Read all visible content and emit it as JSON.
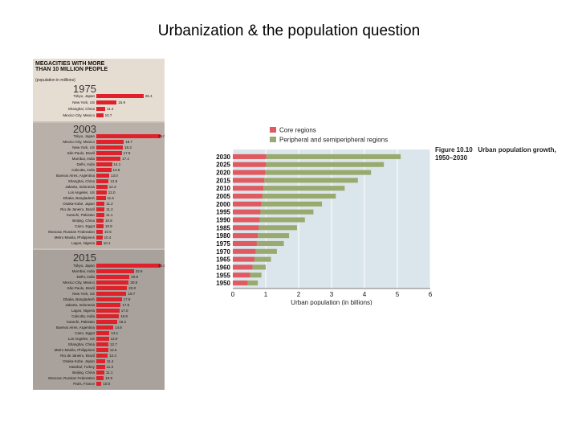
{
  "slide": {
    "title": "Urbanization & the population question"
  },
  "megacities": {
    "header": "MEGACITIES WITH MORE THAN 10 MILLION PEOPLE",
    "subheader": "(population in millions)",
    "years": [
      {
        "year": "1975",
        "cities": [
          {
            "name": "Tokyo, Japan",
            "value": 26.4
          },
          {
            "name": "New York, US",
            "value": 15.9
          },
          {
            "name": "Shanghai, China",
            "value": 11.4
          },
          {
            "name": "Mexico City, Mexico",
            "value": 10.7
          }
        ]
      },
      {
        "year": "2003",
        "cities": [
          {
            "name": "Tokyo, Japan",
            "value": 35.0
          },
          {
            "name": "Mexico City, Mexico",
            "value": 18.7
          },
          {
            "name": "New York, US",
            "value": 18.3
          },
          {
            "name": "São Paulo, Brazil",
            "value": 17.9
          },
          {
            "name": "Mumbai, India",
            "value": 17.4
          },
          {
            "name": "Delhi, India",
            "value": 14.1
          },
          {
            "name": "Calcutta, India",
            "value": 13.8
          },
          {
            "name": "Buenos Aires, Argentina",
            "value": 13.0
          },
          {
            "name": "Shanghai, China",
            "value": 12.8
          },
          {
            "name": "Jakarta, Indonesia",
            "value": 12.3
          },
          {
            "name": "Los Angeles, US",
            "value": 12.0
          },
          {
            "name": "Dhaka, Bangladesh",
            "value": 11.6
          },
          {
            "name": "Osaka-Kobe, Japan",
            "value": 11.2
          },
          {
            "name": "Rio de Janeiro, Brazil",
            "value": 11.2
          },
          {
            "name": "Karachi, Pakistan",
            "value": 11.1
          },
          {
            "name": "Beijing, China",
            "value": 10.8
          },
          {
            "name": "Cairo, Egypt",
            "value": 10.8
          },
          {
            "name": "Moscow, Russian Federation",
            "value": 10.5
          },
          {
            "name": "Metro Manila, Philippines",
            "value": 10.4
          },
          {
            "name": "Lagos, Nigeria",
            "value": 10.1
          }
        ]
      },
      {
        "year": "2015",
        "cities": [
          {
            "name": "Tokyo, Japan",
            "value": 36.2
          },
          {
            "name": "Mumbai, India",
            "value": 22.6
          },
          {
            "name": "Delhi, India",
            "value": 20.9
          },
          {
            "name": "Mexico City, Mexico",
            "value": 20.6
          },
          {
            "name": "São Paulo, Brazil",
            "value": 20.0
          },
          {
            "name": "New York, US",
            "value": 19.7
          },
          {
            "name": "Dhaka, Bangladesh",
            "value": 17.9
          },
          {
            "name": "Jakarta, Indonesia",
            "value": 17.5
          },
          {
            "name": "Lagos, Nigeria",
            "value": 17.0
          },
          {
            "name": "Calcutta, India",
            "value": 16.8
          },
          {
            "name": "Karachi, Pakistan",
            "value": 16.2
          },
          {
            "name": "Buenos Aires, Argentina",
            "value": 14.6
          },
          {
            "name": "Cairo, Egypt",
            "value": 13.1
          },
          {
            "name": "Los Angeles, US",
            "value": 12.9
          },
          {
            "name": "Shanghai, China",
            "value": 12.7
          },
          {
            "name": "Metro Manila, Philippines",
            "value": 12.6
          },
          {
            "name": "Rio de Janeiro, Brazil",
            "value": 12.4
          },
          {
            "name": "Osaka-Kobe, Japan",
            "value": 11.4
          },
          {
            "name": "Istanbul, Turkey",
            "value": 11.3
          },
          {
            "name": "Beijing, China",
            "value": 11.1
          },
          {
            "name": "Moscow, Russian Federation",
            "value": 10.9
          },
          {
            "name": "Paris, France",
            "value": 10.0
          }
        ]
      }
    ]
  },
  "chart_data": {
    "type": "bar",
    "orientation": "horizontal",
    "stacked": true,
    "categories": [
      "2030",
      "2025",
      "2020",
      "2015",
      "2010",
      "2005",
      "2000",
      "1995",
      "1990",
      "1985",
      "1980",
      "1975",
      "1970",
      "1965",
      "1960",
      "1955",
      "1950"
    ],
    "series": [
      {
        "name": "Core regions",
        "color": "#e05a62",
        "values": [
          1.02,
          1.01,
          0.99,
          0.96,
          0.93,
          0.9,
          0.87,
          0.84,
          0.82,
          0.79,
          0.76,
          0.73,
          0.7,
          0.66,
          0.6,
          0.53,
          0.45
        ]
      },
      {
        "name": "Peripheral and semiperipheral regions",
        "color": "#9aaa6e",
        "values": [
          4.08,
          3.58,
          3.21,
          2.84,
          2.47,
          2.23,
          1.84,
          1.61,
          1.37,
          1.16,
          0.95,
          0.82,
          0.64,
          0.5,
          0.4,
          0.34,
          0.31
        ]
      }
    ],
    "xlabel": "Urban population (in billions)",
    "x_ticks": [
      "0",
      "1",
      "2",
      "3",
      "4",
      "5",
      "6"
    ],
    "xlim": [
      0,
      6
    ],
    "grid": true,
    "legend": "top-left",
    "caption_number": "Figure 10.10",
    "caption_title": "Urban population growth, 1950–2030"
  }
}
